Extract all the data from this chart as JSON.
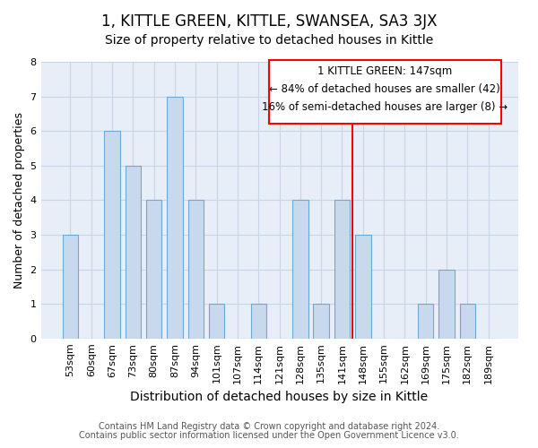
{
  "title": "1, KITTLE GREEN, KITTLE, SWANSEA, SA3 3JX",
  "subtitle": "Size of property relative to detached houses in Kittle",
  "xlabel": "Distribution of detached houses by size in Kittle",
  "ylabel": "Number of detached properties",
  "categories": [
    "53sqm",
    "60sqm",
    "67sqm",
    "73sqm",
    "80sqm",
    "87sqm",
    "94sqm",
    "101sqm",
    "107sqm",
    "114sqm",
    "121sqm",
    "128sqm",
    "135sqm",
    "141sqm",
    "148sqm",
    "155sqm",
    "162sqm",
    "169sqm",
    "175sqm",
    "182sqm",
    "189sqm"
  ],
  "values": [
    3,
    0,
    6,
    5,
    4,
    7,
    4,
    1,
    0,
    1,
    0,
    4,
    1,
    4,
    3,
    0,
    0,
    1,
    2,
    1,
    0
  ],
  "bar_color": "#c8d8ed",
  "bar_edge_color": "#6aaad4",
  "grid_color": "#c8d4e8",
  "bg_color": "#e8eef8",
  "ylim": [
    0,
    8
  ],
  "yticks": [
    0,
    1,
    2,
    3,
    4,
    5,
    6,
    7,
    8
  ],
  "property_label": "1 KITTLE GREEN: 147sqm",
  "pct_smaller": 84,
  "n_smaller": 42,
  "pct_larger": 16,
  "n_larger": 8,
  "red_line_index": 14,
  "footer1": "Contains HM Land Registry data © Crown copyright and database right 2024.",
  "footer2": "Contains public sector information licensed under the Open Government Licence v3.0.",
  "title_fontsize": 12,
  "subtitle_fontsize": 10,
  "tick_fontsize": 8,
  "ylabel_fontsize": 9,
  "xlabel_fontsize": 10,
  "footer_fontsize": 7,
  "annotation_fontsize": 8.5,
  "bar_width": 0.75
}
